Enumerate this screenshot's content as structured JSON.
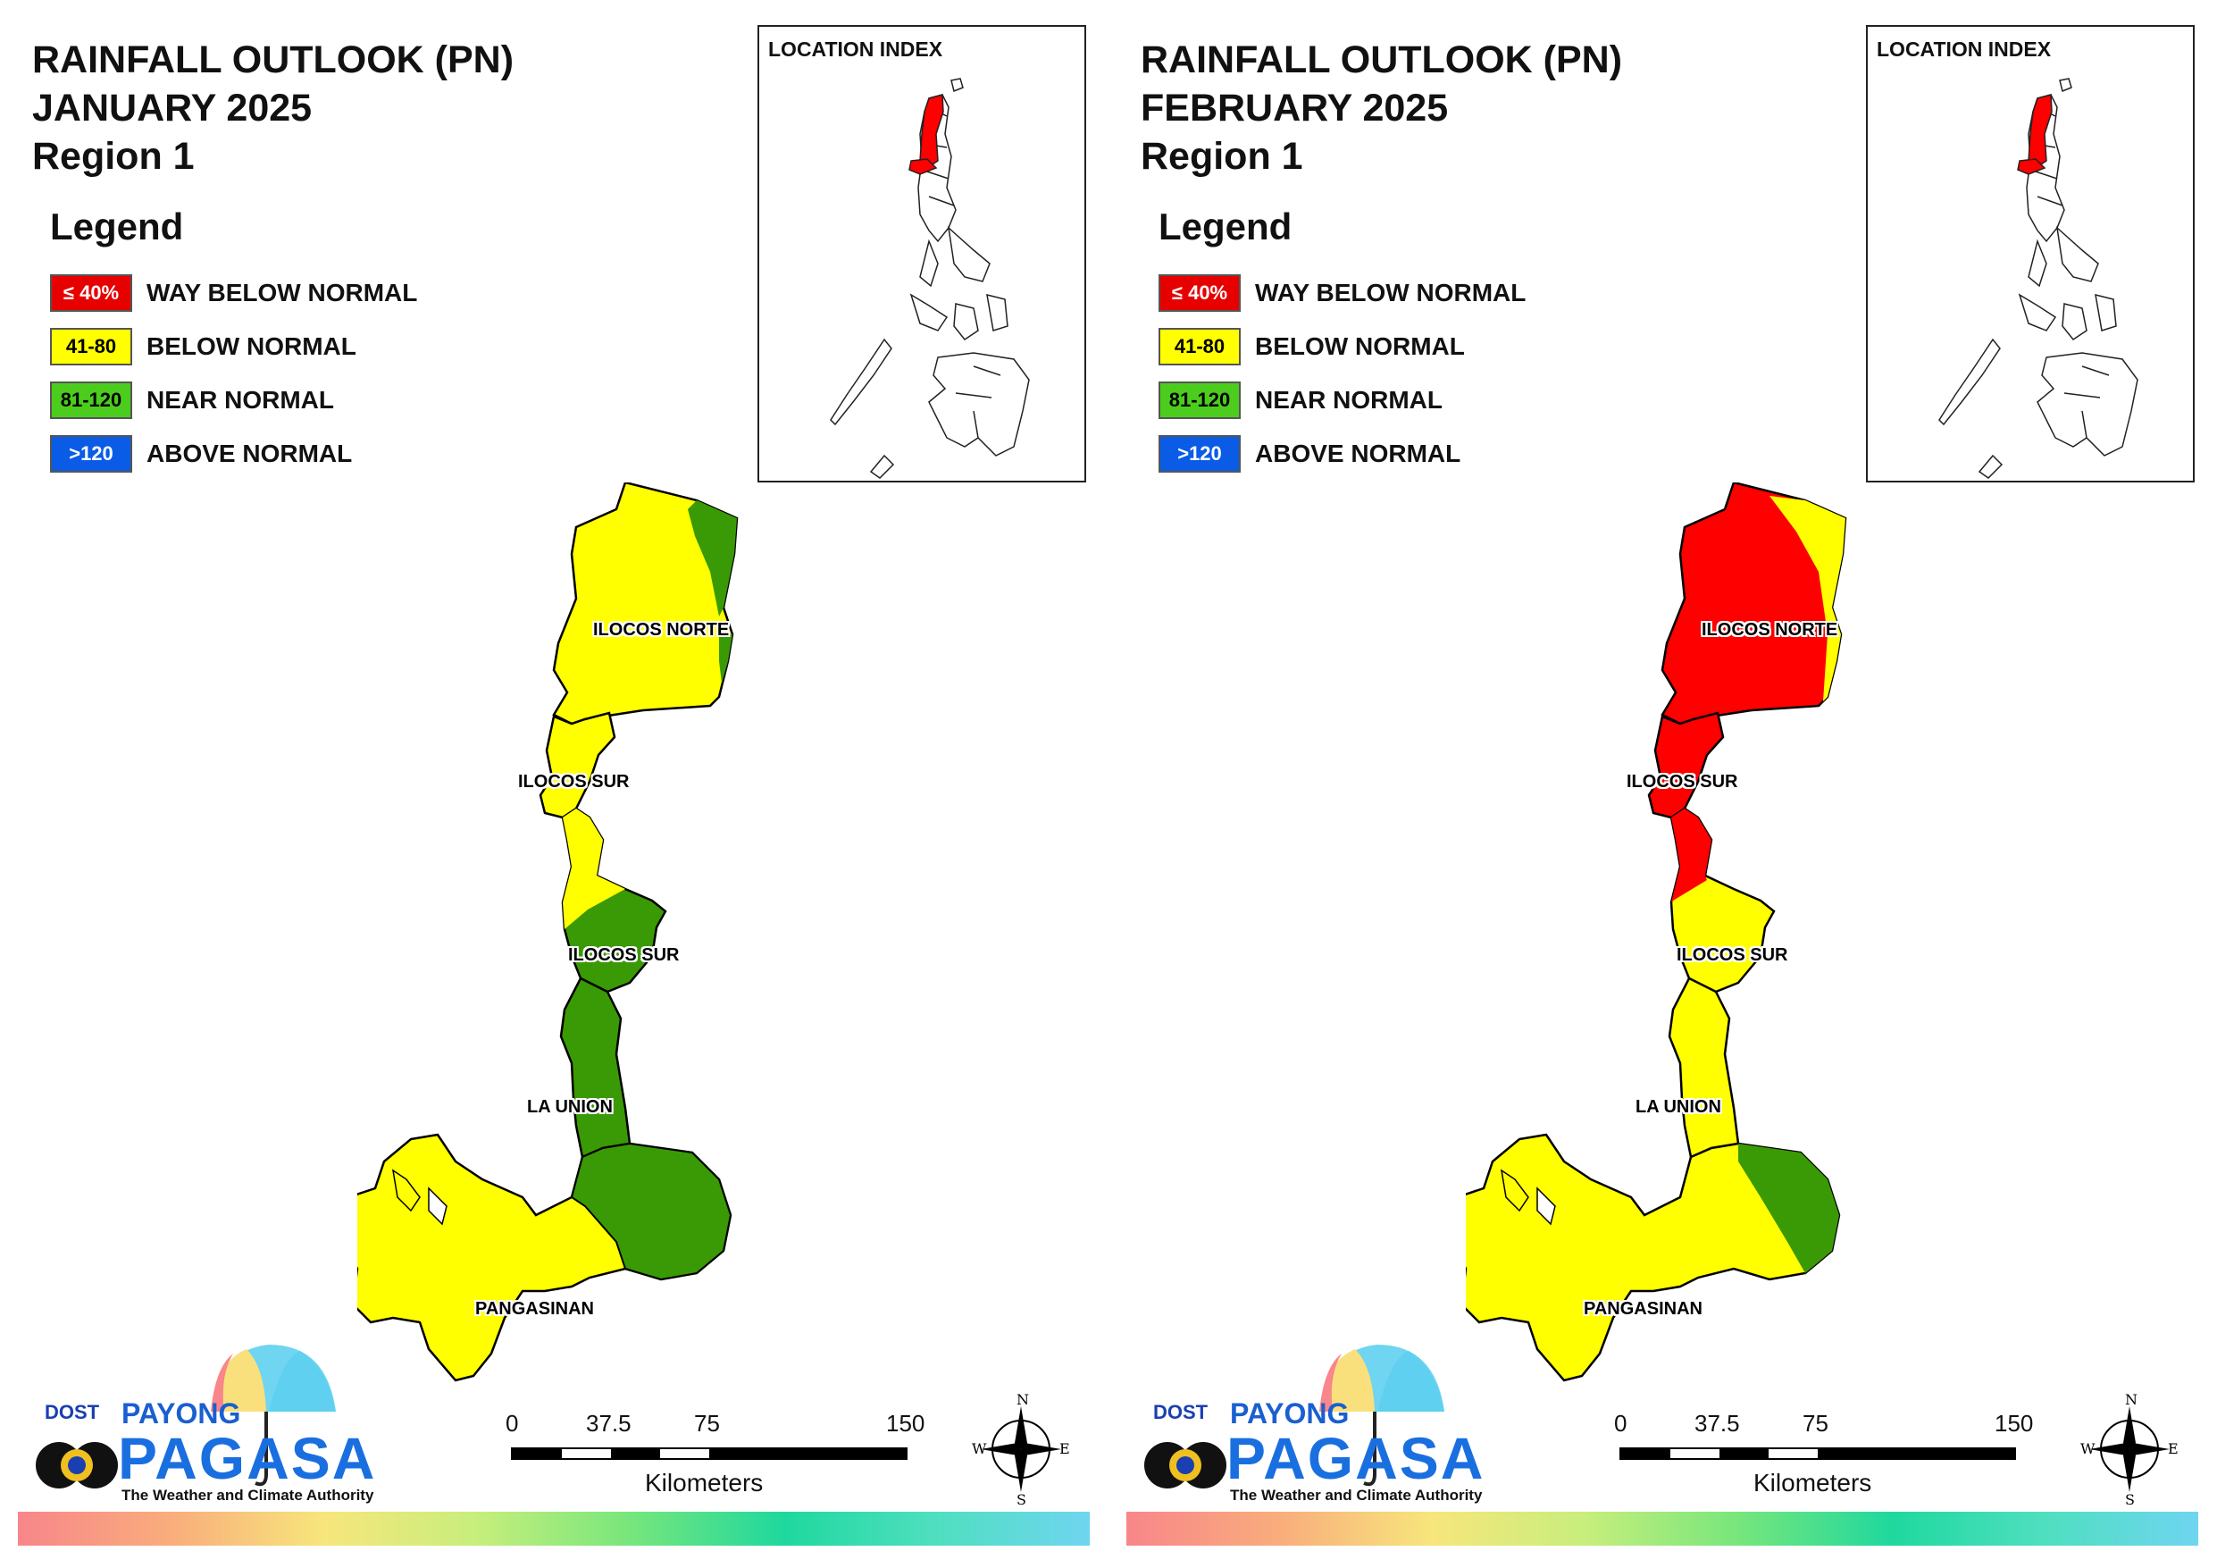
{
  "panels": [
    {
      "title": [
        "RAINFALL OUTLOOK (PN)",
        "JANUARY 2025",
        "Region 1"
      ],
      "provinces": {
        "ilocos_norte": "ILOCOS NORTE",
        "ilocos_sur_north": "ILOCOS SUR",
        "ilocos_sur_south": "ILOCOS SUR",
        "la_union": "LA UNION",
        "pangasinan": "PANGASINAN"
      },
      "province_categories": {
        "ilocos_norte": "below_normal (east edge near_normal)",
        "ilocos_sur_north": "below_normal",
        "ilocos_sur_south": "below_normal north / near_normal south",
        "la_union": "near_normal",
        "pangasinan": "below_normal west / near_normal east"
      }
    },
    {
      "title": [
        "RAINFALL OUTLOOK (PN)",
        "FEBRUARY 2025",
        "Region 1"
      ],
      "provinces": {
        "ilocos_norte": "ILOCOS NORTE",
        "ilocos_sur_north": "ILOCOS SUR",
        "ilocos_sur_south": "ILOCOS SUR",
        "la_union": "LA UNION",
        "pangasinan": "PANGASINAN"
      },
      "province_categories": {
        "ilocos_norte": "way_below_normal (east edge below_normal)",
        "ilocos_sur_north": "way_below_normal",
        "ilocos_sur_south": "below_normal",
        "la_union": "below_normal",
        "pangasinan": "below_normal west / near_normal east"
      }
    }
  ],
  "legend": {
    "title": "Legend",
    "items": [
      {
        "range": "≤ 40%",
        "label": "WAY BELOW NORMAL",
        "color": "#e60000",
        "text_color": "#ffffff"
      },
      {
        "range": "41-80",
        "label": "BELOW NORMAL",
        "color": "#ffff00",
        "text_color": "#000000"
      },
      {
        "range": "81-120",
        "label": "NEAR NORMAL",
        "color": "#4ccd1e",
        "text_color": "#000000"
      },
      {
        "range": ">120",
        "label": "ABOVE NORMAL",
        "color": "#0a5ce6",
        "text_color": "#ffffff"
      }
    ]
  },
  "index_title": "LOCATION INDEX",
  "scale": {
    "ticks": [
      "0",
      "37.5",
      "75",
      "150"
    ],
    "unit": "Kilometers"
  },
  "compass": {
    "n": "N",
    "s": "S",
    "e": "E",
    "w": "W"
  },
  "logo": {
    "dost": "DOST",
    "payong": "PAYONG",
    "pagasa": "PAGASA",
    "tagline": "The Weather and Climate Authority"
  },
  "colors": {
    "way_below": "#ff0000",
    "below": "#ffff00",
    "near": "#3a9a05",
    "outline": "#000000"
  }
}
